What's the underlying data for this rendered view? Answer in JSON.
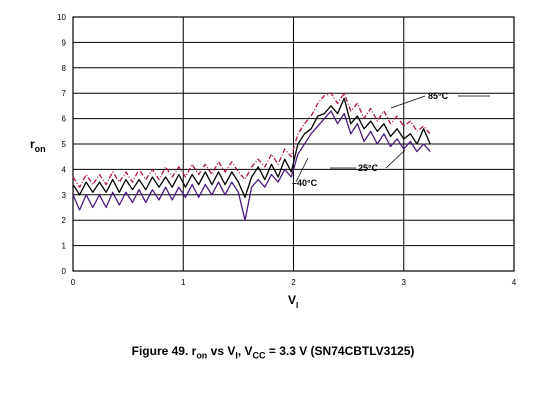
{
  "chart_data": {
    "type": "line",
    "title": "",
    "xlabel": "V",
    "xlabel_sub": "I",
    "ylabel": "r",
    "ylabel_sub": "on",
    "xlim": [
      0,
      4
    ],
    "ylim": [
      0,
      10
    ],
    "x_ticks": [
      "0",
      "1",
      "2",
      "3",
      "4"
    ],
    "y_ticks": [
      "0",
      "1",
      "2",
      "3",
      "4",
      "5",
      "6",
      "7",
      "8",
      "9",
      "10"
    ],
    "grid": true,
    "legend": "none",
    "annotations": [
      "85°C",
      "25°C",
      "–40°C"
    ],
    "series": [
      {
        "color": "#000000",
        "dash": "solid",
        "x": [
          0.0,
          0.06,
          0.12,
          0.18,
          0.24,
          0.3,
          0.36,
          0.42,
          0.48,
          0.54,
          0.6,
          0.66,
          0.72,
          0.78,
          0.84,
          0.9,
          0.96,
          1.02,
          1.08,
          1.14,
          1.2,
          1.26,
          1.32,
          1.38,
          1.44,
          1.5,
          1.56,
          1.62,
          1.68,
          1.74,
          1.8,
          1.86,
          1.92,
          1.98,
          2.04,
          2.1,
          2.16,
          2.22,
          2.28,
          2.34,
          2.4,
          2.46,
          2.52,
          2.58,
          2.64,
          2.7,
          2.76,
          2.82,
          2.88,
          2.94,
          3.0,
          3.06,
          3.12,
          3.18,
          3.24
        ],
        "y": [
          3.4,
          3.0,
          3.5,
          3.1,
          3.5,
          3.1,
          3.6,
          3.1,
          3.6,
          3.2,
          3.6,
          3.2,
          3.7,
          3.3,
          3.7,
          3.3,
          3.8,
          3.3,
          3.8,
          3.4,
          3.9,
          3.4,
          3.9,
          3.4,
          3.9,
          3.5,
          2.9,
          3.7,
          4.1,
          3.6,
          4.2,
          3.7,
          4.4,
          3.9,
          5.0,
          5.4,
          5.6,
          6.1,
          6.2,
          6.5,
          6.2,
          6.8,
          5.8,
          6.1,
          5.6,
          5.9,
          5.5,
          5.8,
          5.3,
          5.6,
          5.2,
          5.4,
          5.0,
          5.6,
          5.0
        ]
      },
      {
        "color": "#b0134a",
        "dash": "dashdot",
        "x": [
          0.0,
          0.06,
          0.12,
          0.18,
          0.24,
          0.3,
          0.36,
          0.42,
          0.48,
          0.54,
          0.6,
          0.66,
          0.72,
          0.78,
          0.84,
          0.9,
          0.96,
          1.02,
          1.08,
          1.14,
          1.2,
          1.26,
          1.32,
          1.38,
          1.44,
          1.5,
          1.56,
          1.62,
          1.68,
          1.74,
          1.8,
          1.86,
          1.92,
          1.98,
          2.04,
          2.1,
          2.16,
          2.22,
          2.28,
          2.34,
          2.4,
          2.46,
          2.52,
          2.58,
          2.64,
          2.7,
          2.76,
          2.82,
          2.88,
          2.94,
          3.0,
          3.06,
          3.12,
          3.18,
          3.24
        ],
        "y": [
          3.7,
          3.3,
          3.8,
          3.4,
          3.8,
          3.4,
          3.9,
          3.5,
          3.9,
          3.5,
          4.0,
          3.6,
          4.0,
          3.6,
          4.1,
          3.7,
          4.1,
          3.7,
          4.2,
          3.8,
          4.2,
          3.8,
          4.3,
          3.9,
          4.3,
          3.9,
          3.6,
          4.1,
          4.4,
          4.1,
          4.6,
          4.2,
          4.8,
          4.5,
          5.4,
          5.8,
          6.1,
          6.6,
          6.9,
          7.0,
          6.6,
          7.0,
          6.3,
          6.6,
          6.0,
          6.4,
          5.9,
          6.3,
          5.8,
          6.1,
          5.7,
          5.9,
          5.5,
          5.7,
          5.4
        ]
      },
      {
        "color": "#4b1a80",
        "dash": "solid",
        "x": [
          0.0,
          0.06,
          0.12,
          0.18,
          0.24,
          0.3,
          0.36,
          0.42,
          0.48,
          0.54,
          0.6,
          0.66,
          0.72,
          0.78,
          0.84,
          0.9,
          0.96,
          1.02,
          1.08,
          1.14,
          1.2,
          1.26,
          1.32,
          1.38,
          1.44,
          1.5,
          1.56,
          1.62,
          1.68,
          1.74,
          1.8,
          1.86,
          1.92,
          1.98,
          2.04,
          2.1,
          2.16,
          2.22,
          2.28,
          2.34,
          2.4,
          2.46,
          2.52,
          2.58,
          2.64,
          2.7,
          2.76,
          2.82,
          2.88,
          2.94,
          3.0,
          3.06,
          3.12,
          3.18,
          3.24
        ],
        "y": [
          3.0,
          2.4,
          3.0,
          2.5,
          3.0,
          2.5,
          3.1,
          2.6,
          3.1,
          2.7,
          3.2,
          2.7,
          3.2,
          2.8,
          3.3,
          2.8,
          3.3,
          2.9,
          3.4,
          2.9,
          3.4,
          3.0,
          3.5,
          3.0,
          3.5,
          3.1,
          2.0,
          3.3,
          3.6,
          3.3,
          3.8,
          3.5,
          4.0,
          3.7,
          4.6,
          5.0,
          5.4,
          5.7,
          6.0,
          6.3,
          5.8,
          6.2,
          5.4,
          5.8,
          5.1,
          5.5,
          5.0,
          5.4,
          4.9,
          5.2,
          4.8,
          5.1,
          4.7,
          5.0,
          4.7
        ]
      }
    ]
  },
  "caption": {
    "prefix": "Figure 49.  r",
    "r_sub": "on",
    "mid1": " vs V",
    "v_sub": "I",
    "mid2": ", V",
    "vcc_sub": "CC",
    "suffix": " = 3.3 V (SN74CBTLV3125)"
  }
}
